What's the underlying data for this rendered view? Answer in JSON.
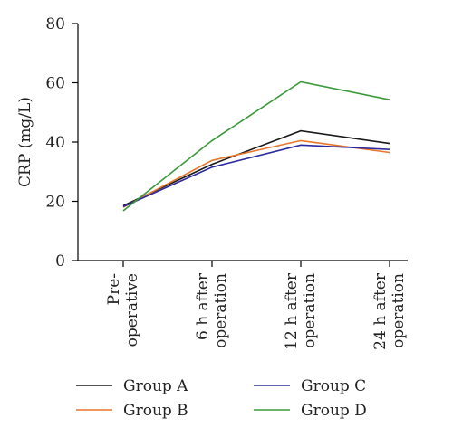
{
  "chart_data": {
    "type": "line",
    "categories": [
      [
        "Pre-",
        "operative"
      ],
      [
        "6 h after",
        "operation"
      ],
      [
        "12 h after",
        "operation"
      ],
      [
        "24 h after",
        "operation"
      ]
    ],
    "ylabel": "CRP (mg/L)",
    "ylim": [
      0,
      80
    ],
    "yticks": [
      0,
      20,
      40,
      60,
      80
    ],
    "grid": false,
    "legend_position": "bottom",
    "series": [
      {
        "name": "Group A",
        "color": "#1a1a1a",
        "values": [
          18.5,
          32.5,
          43.8,
          39.5
        ]
      },
      {
        "name": "Group B",
        "color": "#e8762c",
        "values": [
          18.0,
          33.8,
          40.5,
          36.5
        ]
      },
      {
        "name": "Group C",
        "color": "#2b2b9e",
        "values": [
          18.2,
          31.5,
          39.0,
          37.5
        ]
      },
      {
        "name": "Group D",
        "color": "#3a9a3a",
        "values": [
          16.8,
          40.5,
          60.3,
          54.3
        ]
      }
    ]
  }
}
